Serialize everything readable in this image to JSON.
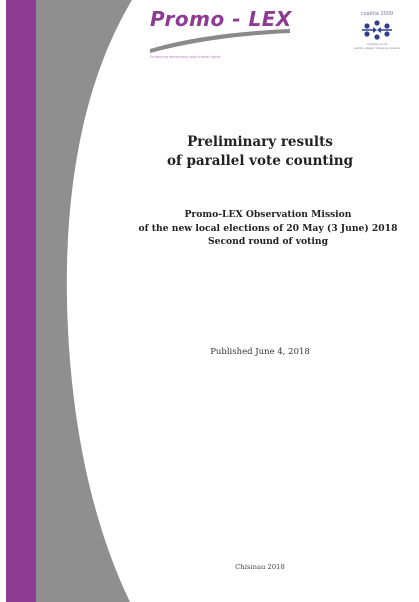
{
  "header": {
    "logo_text": "Promo - LEX",
    "logo_tagline": "Protecting democracy and human rights",
    "coalition_label": "coaliția 2009",
    "coalition_caption": [
      "coaliția civică",
      "pentru alegeri libere și corecte"
    ]
  },
  "title_lines": [
    "Preliminary results",
    "of parallel vote counting"
  ],
  "mission_lines": [
    "Promo-LEX Observation Mission",
    "of the new local elections of 20 May (3 June) 2018",
    "Second round of voting"
  ],
  "published": "Published June 4, 2018",
  "city_year": "Chisinau 2018",
  "colors": {
    "brand_purple": "#8e3b94",
    "stripe_gray": "#8f8f8f",
    "coalition_blue": "#2f3f8f"
  }
}
